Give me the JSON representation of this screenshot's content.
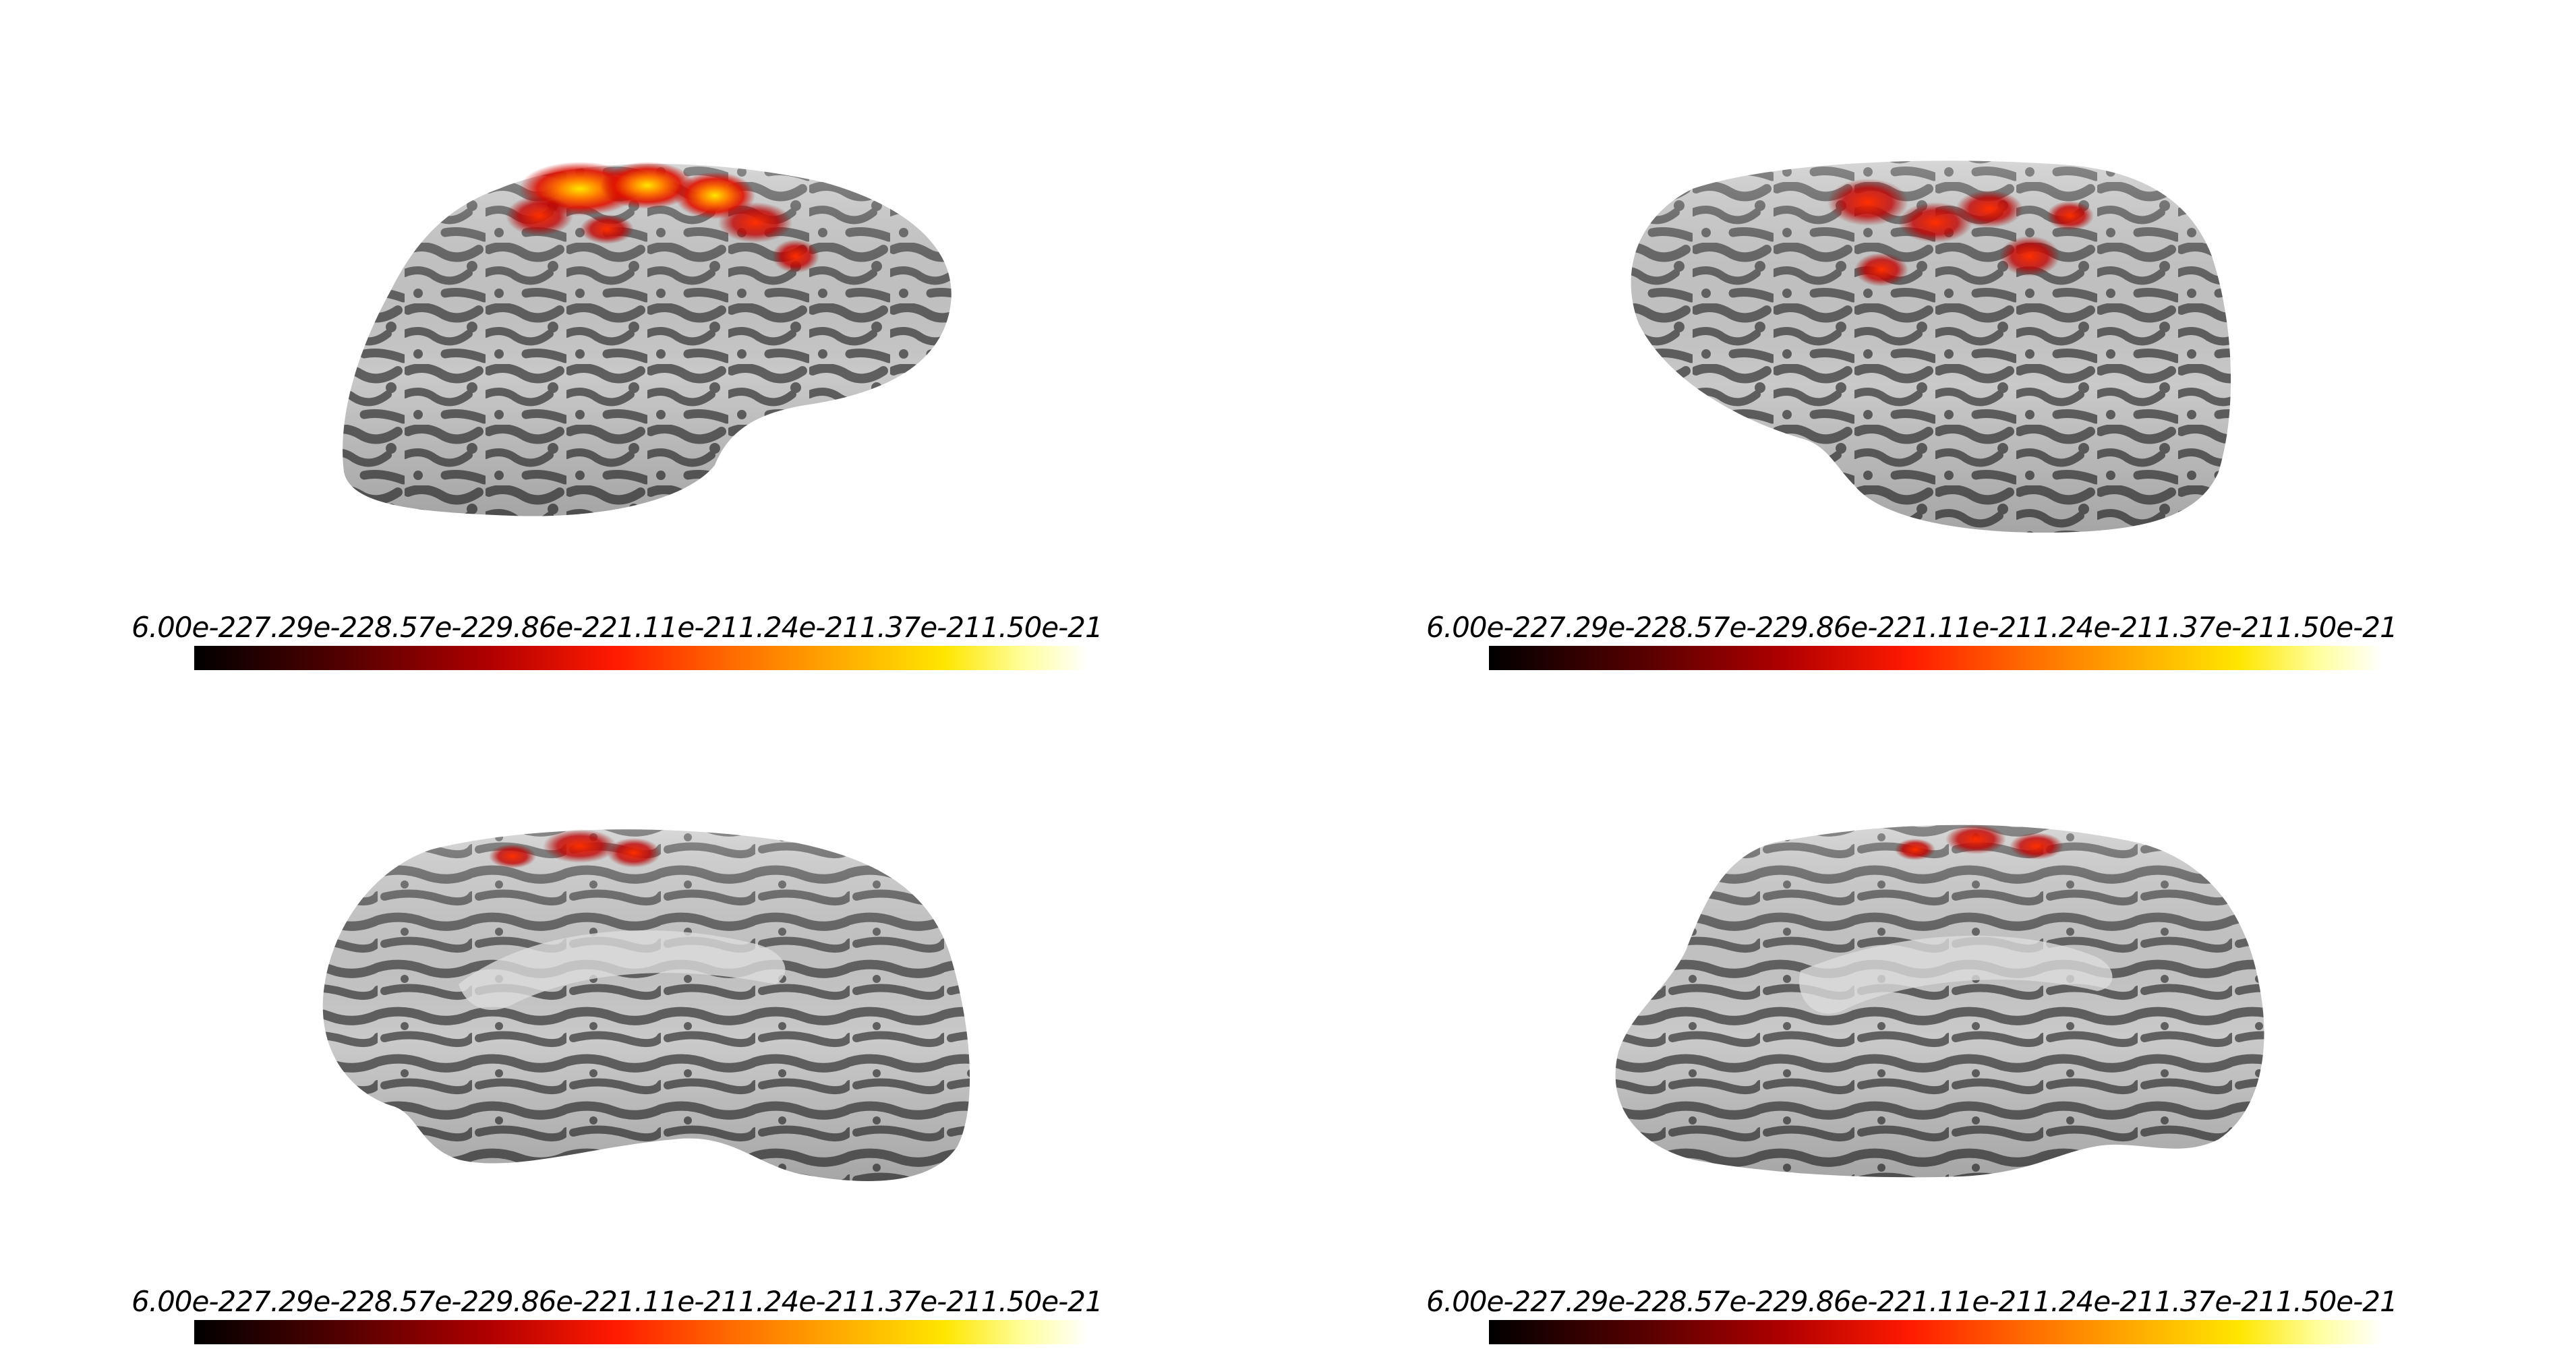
{
  "colormap": {
    "name": "hot",
    "stops": [
      "#000000",
      "#5a0000",
      "#b00000",
      "#ff1a00",
      "#ff6a00",
      "#ffaa00",
      "#ffe600",
      "#ffffa0",
      "#ffffff"
    ]
  },
  "views": [
    {
      "id": "left-lateral",
      "colorbar": {
        "tick_labels": [
          "6.00e-22",
          "7.29e-22",
          "8.57e-22",
          "9.86e-22",
          "1.11e-21",
          "1.24e-21",
          "1.37e-21",
          "1.50e-21"
        ]
      }
    },
    {
      "id": "right-lateral",
      "colorbar": {
        "tick_labels": [
          "6.00e-22",
          "7.29e-22",
          "8.57e-22",
          "9.86e-22",
          "1.11e-21",
          "1.24e-21",
          "1.37e-21",
          "1.50e-21"
        ]
      }
    },
    {
      "id": "left-medial",
      "colorbar": {
        "tick_labels": [
          "6.00e-22",
          "7.29e-22",
          "8.57e-22",
          "9.86e-22",
          "1.11e-21",
          "1.24e-21",
          "1.37e-21",
          "1.50e-21"
        ]
      }
    },
    {
      "id": "right-medial",
      "colorbar": {
        "tick_labels": [
          "6.00e-22",
          "7.29e-22",
          "8.57e-22",
          "9.86e-22",
          "1.11e-21",
          "1.24e-21",
          "1.37e-21",
          "1.50e-21"
        ]
      }
    }
  ],
  "surface_colors": {
    "gyri": "#c8c8c8",
    "sulci": "#5f5f5f",
    "activation": "#ff2a00",
    "activation_peak": "#ffd400"
  }
}
